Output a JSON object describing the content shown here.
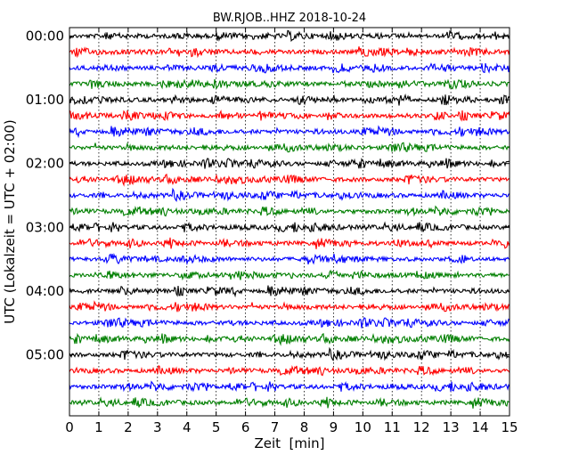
{
  "chart_data": {
    "type": "line",
    "title": "BW.RJOB..HHZ 2018-10-24",
    "xlabel": "Zeit  [min]",
    "ylabel": "UTC (Lokalzeit = UTC + 02:00)",
    "xlim": [
      0,
      15
    ],
    "x_ticks": [
      "0",
      "1",
      "2",
      "3",
      "4",
      "5",
      "6",
      "7",
      "8",
      "9",
      "10",
      "11",
      "12",
      "13",
      "14",
      "15"
    ],
    "y_ticks": [
      "00:00",
      "01:00",
      "02:00",
      "03:00",
      "04:00",
      "05:00"
    ],
    "grid": "vertical dotted at each minute",
    "trace_interval_minutes": 15,
    "trace_count": 24,
    "trace_colors": [
      "#000000",
      "#ff0000",
      "#0000ff",
      "#007f00"
    ],
    "series": [
      {
        "start": "00:00"
      },
      {
        "start": "00:15"
      },
      {
        "start": "00:30"
      },
      {
        "start": "00:45"
      },
      {
        "start": "01:00"
      },
      {
        "start": "01:15"
      },
      {
        "start": "01:30"
      },
      {
        "start": "01:45"
      },
      {
        "start": "02:00"
      },
      {
        "start": "02:15"
      },
      {
        "start": "02:30"
      },
      {
        "start": "02:45"
      },
      {
        "start": "03:00"
      },
      {
        "start": "03:15"
      },
      {
        "start": "03:30"
      },
      {
        "start": "03:45"
      },
      {
        "start": "04:00"
      },
      {
        "start": "04:15"
      },
      {
        "start": "04:30"
      },
      {
        "start": "04:45"
      },
      {
        "start": "05:00"
      },
      {
        "start": "05:15"
      },
      {
        "start": "05:30"
      },
      {
        "start": "05:45"
      }
    ]
  }
}
